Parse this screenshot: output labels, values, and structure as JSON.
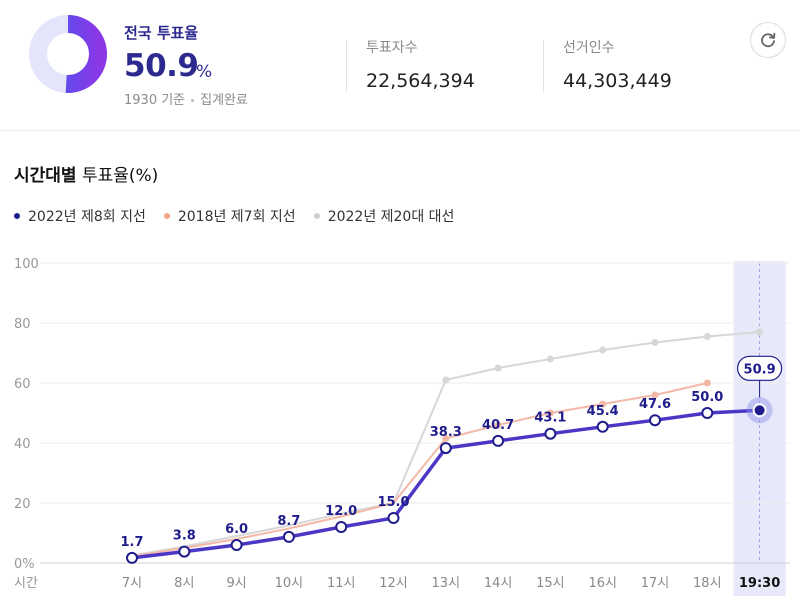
{
  "summary": {
    "label": "전국 투표율",
    "value": "50.9",
    "unit": "%",
    "time_note": "1930 기준",
    "status": "집계완료",
    "turnout_fraction": 0.509,
    "votes_label": "투표자수",
    "votes_value": "22,564,394",
    "electorate_label": "선거인수",
    "electorate_value": "44,303,449",
    "refresh_icon": "refresh-icon"
  },
  "section": {
    "title_bold": "시간대별",
    "title_rest": " 투표율(%)"
  },
  "colors": {
    "accent": "#4b37c6",
    "accent_dark": "#1f1d8c",
    "series_2018": "#f3b9a7",
    "series_2022": "#d7d7d7",
    "highlight_band": "#dfe1f8"
  },
  "chart_data": {
    "type": "line",
    "xlabel": "시간",
    "categories": [
      "7시",
      "8시",
      "9시",
      "10시",
      "11시",
      "12시",
      "13시",
      "14시",
      "15시",
      "16시",
      "17시",
      "18시",
      "19:30"
    ],
    "ylim": [
      0,
      100
    ],
    "yticks": [
      "0%",
      "20",
      "40",
      "60",
      "80",
      "100"
    ],
    "grid": true,
    "legend_position": "top-left",
    "series": [
      {
        "name": "2022년 제8회 지선",
        "color": "#4b37c6",
        "values": [
          1.7,
          3.8,
          6.0,
          8.7,
          12.0,
          15.0,
          38.3,
          40.7,
          43.1,
          45.4,
          47.6,
          50.0,
          50.9
        ],
        "labels": [
          "1.7",
          "3.8",
          "6.0",
          "8.7",
          "12.0",
          "15.0",
          "38.3",
          "40.7",
          "43.1",
          "45.4",
          "47.6",
          "50.0",
          "50.9"
        ]
      },
      {
        "name": "2018년 제7회 지선",
        "color": "#f3b9a7",
        "values": [
          2.2,
          5.0,
          8.0,
          11.5,
          15.5,
          20.0,
          41.5,
          46.0,
          50.0,
          53.0,
          56.0,
          60.0,
          null
        ]
      },
      {
        "name": "2022년 제20대 대선",
        "color": "#d7d7d7",
        "values": [
          2.5,
          5.5,
          9.0,
          12.5,
          16.5,
          20.0,
          61.0,
          65.0,
          68.0,
          71.0,
          73.5,
          75.5,
          77.0
        ]
      }
    ]
  }
}
